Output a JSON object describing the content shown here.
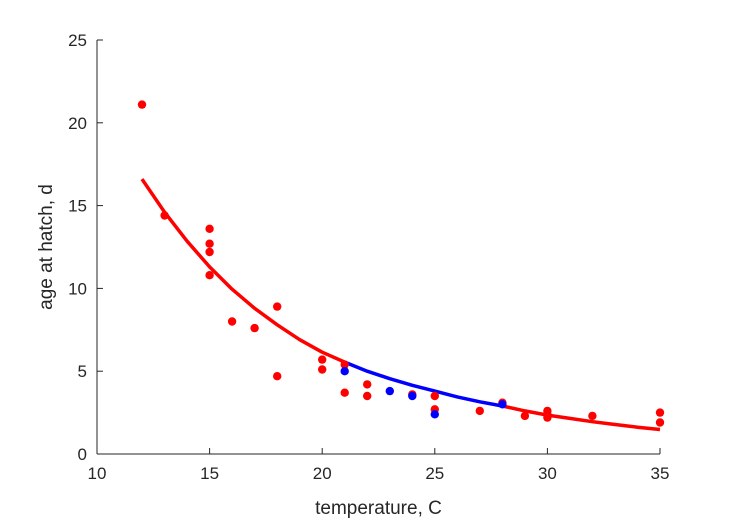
{
  "chart_data": {
    "type": "scatter",
    "title": "",
    "xlabel": "temperature, C",
    "ylabel": "age at hatch, d",
    "xlim": [
      10,
      35
    ],
    "ylim": [
      0,
      25
    ],
    "xticks": [
      10,
      15,
      20,
      25,
      30,
      35
    ],
    "yticks": [
      0,
      5,
      10,
      15,
      20,
      25
    ],
    "grid": false,
    "legend": "none",
    "series": [
      {
        "kind": "points",
        "color": "#ff0000",
        "x": [
          12,
          13,
          15,
          15,
          15,
          15,
          16,
          17,
          18,
          18,
          20,
          20,
          21,
          21,
          22,
          22,
          24,
          25,
          25,
          27,
          28,
          29,
          30,
          30,
          30,
          32,
          35,
          35
        ],
        "y": [
          21.1,
          14.4,
          13.6,
          12.7,
          12.2,
          10.8,
          8.0,
          7.6,
          8.9,
          4.7,
          5.7,
          5.1,
          5.4,
          3.7,
          4.2,
          3.5,
          3.6,
          3.5,
          2.7,
          2.6,
          3.1,
          2.3,
          2.6,
          2.4,
          2.2,
          2.3,
          2.5,
          1.9
        ]
      },
      {
        "kind": "points",
        "color": "#0000ff",
        "x": [
          21,
          23,
          24,
          25,
          28
        ],
        "y": [
          5.0,
          3.8,
          3.5,
          2.4,
          3.0
        ]
      },
      {
        "kind": "curve",
        "color": "#ff0000",
        "x": [
          12,
          13,
          14,
          15,
          16,
          17,
          18,
          19,
          20,
          21
        ],
        "y": [
          16.6,
          14.6,
          12.85,
          11.3,
          9.95,
          8.8,
          7.8,
          6.9,
          6.15,
          5.55
        ]
      },
      {
        "kind": "curve",
        "color": "#0000ff",
        "x": [
          21,
          22,
          23,
          24,
          25,
          26,
          27,
          28
        ],
        "y": [
          5.55,
          5.0,
          4.55,
          4.15,
          3.8,
          3.45,
          3.15,
          2.9
        ]
      },
      {
        "kind": "curve",
        "color": "#ff0000",
        "x": [
          28,
          29,
          30,
          31,
          32,
          33,
          34,
          35
        ],
        "y": [
          2.9,
          2.6,
          2.35,
          2.15,
          1.95,
          1.78,
          1.62,
          1.48
        ]
      }
    ]
  }
}
